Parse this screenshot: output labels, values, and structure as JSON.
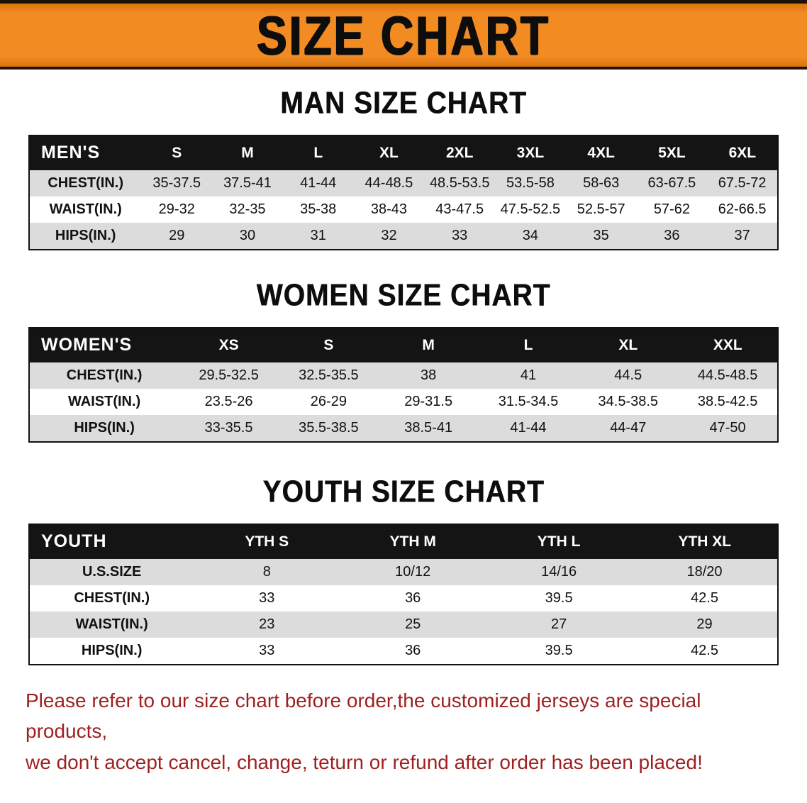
{
  "banner": {
    "title": "SIZE CHART"
  },
  "sections": [
    {
      "heading": "MAN SIZE CHART",
      "table": {
        "header": [
          "MEN'S",
          "S",
          "M",
          "L",
          "XL",
          "2XL",
          "3XL",
          "4XL",
          "5XL",
          "6XL"
        ],
        "rows": [
          [
            "CHEST(IN.)",
            "35-37.5",
            "37.5-41",
            "41-44",
            "44-48.5",
            "48.5-53.5",
            "53.5-58",
            "58-63",
            "63-67.5",
            "67.5-72"
          ],
          [
            "WAIST(IN.)",
            "29-32",
            "32-35",
            "35-38",
            "38-43",
            "43-47.5",
            "47.5-52.5",
            "52.5-57",
            "57-62",
            "62-66.5"
          ],
          [
            "HIPS(IN.)",
            "29",
            "30",
            "31",
            "32",
            "33",
            "34",
            "35",
            "36",
            "37"
          ]
        ]
      }
    },
    {
      "heading": "WOMEN SIZE CHART",
      "table": {
        "header": [
          "WOMEN'S",
          "XS",
          "S",
          "M",
          "L",
          "XL",
          "XXL"
        ],
        "rows": [
          [
            "CHEST(IN.)",
            "29.5-32.5",
            "32.5-35.5",
            "38",
            "41",
            "44.5",
            "44.5-48.5"
          ],
          [
            "WAIST(IN.)",
            "23.5-26",
            "26-29",
            "29-31.5",
            "31.5-34.5",
            "34.5-38.5",
            "38.5-42.5"
          ],
          [
            "HIPS(IN.)",
            "33-35.5",
            "35.5-38.5",
            "38.5-41",
            "41-44",
            "44-47",
            "47-50"
          ]
        ]
      }
    },
    {
      "heading": "YOUTH SIZE CHART",
      "table": {
        "header": [
          "YOUTH",
          "YTH S",
          "YTH M",
          "YTH L",
          "YTH XL"
        ],
        "rows": [
          [
            "U.S.SIZE",
            "8",
            "10/12",
            "14/16",
            "18/20"
          ],
          [
            "CHEST(IN.)",
            "33",
            "36",
            "39.5",
            "42.5"
          ],
          [
            "WAIST(IN.)",
            "23",
            "25",
            "27",
            "29"
          ],
          [
            "HIPS(IN.)",
            "33",
            "36",
            "39.5",
            "42.5"
          ]
        ]
      }
    }
  ],
  "disclaimer": {
    "line1": "Please refer to our size chart before order,the customized jerseys are special products,",
    "line2": "we don't accept cancel, change, teturn or refund after order has been placed!"
  },
  "colors": {
    "banner": "#f28b22",
    "header_bg": "#141414",
    "stripe": "#dcdcdc",
    "disclaimer": "#9e1f1f"
  }
}
